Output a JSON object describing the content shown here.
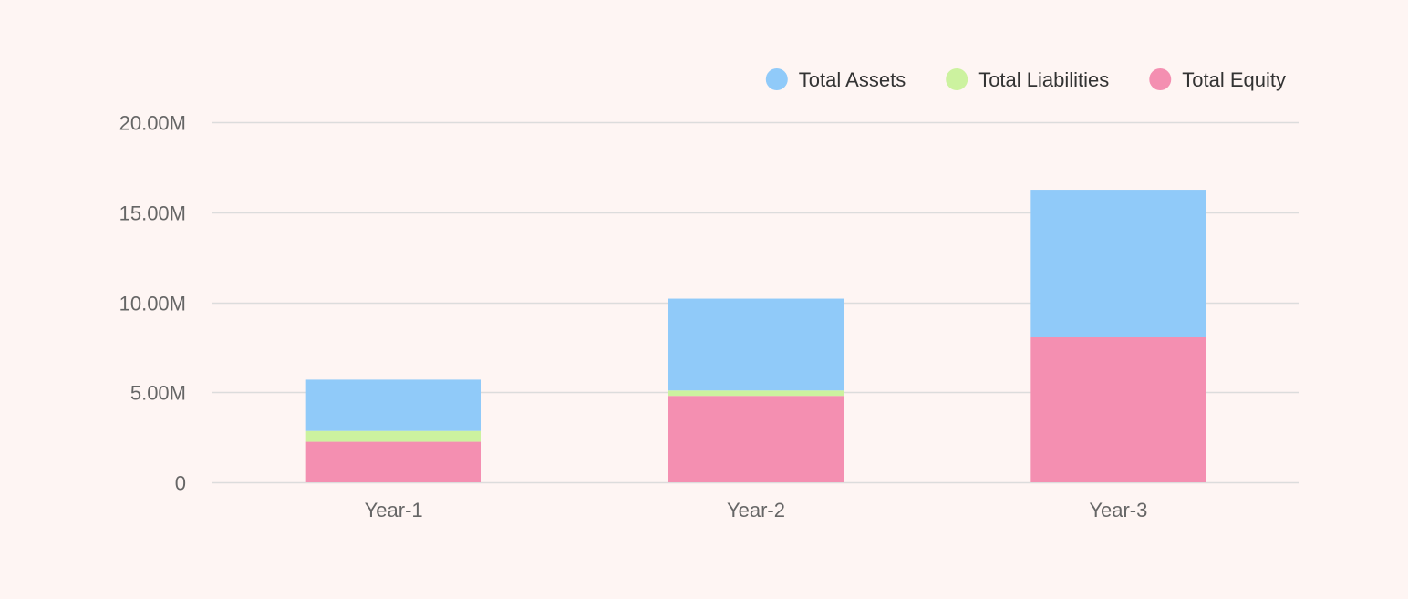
{
  "chart_data": {
    "type": "bar",
    "stacked": true,
    "categories": [
      "Year-1",
      "Year-2",
      "Year-3"
    ],
    "series": [
      {
        "name": "Total Equity",
        "color": "#f48fb1",
        "values": [
          2.25,
          4.8,
          8.05
        ]
      },
      {
        "name": "Total Liabilities",
        "color": "#ccf29f",
        "values": [
          0.6,
          0.3,
          0.0
        ]
      },
      {
        "name": "Total Assets",
        "color": "#90caf9",
        "values": [
          2.85,
          5.1,
          8.2
        ]
      }
    ],
    "legend_order": [
      "Total Assets",
      "Total Liabilities",
      "Total Equity"
    ],
    "y_ticks": [
      {
        "value": 0,
        "label": "0"
      },
      {
        "value": 5,
        "label": "5.00M"
      },
      {
        "value": 10,
        "label": "10.00M"
      },
      {
        "value": 15,
        "label": "15.00M"
      },
      {
        "value": 20,
        "label": "20.00M"
      }
    ],
    "ylim": [
      0,
      20
    ],
    "y_unit": "millions",
    "grid": true,
    "legend_position": "top-right",
    "title": "",
    "xlabel": "",
    "ylabel": ""
  },
  "style": {
    "background": "#fef5f3",
    "grid_color": "#dcdcdc",
    "axis_label_color": "#666666",
    "legend_text_color": "#333333"
  }
}
